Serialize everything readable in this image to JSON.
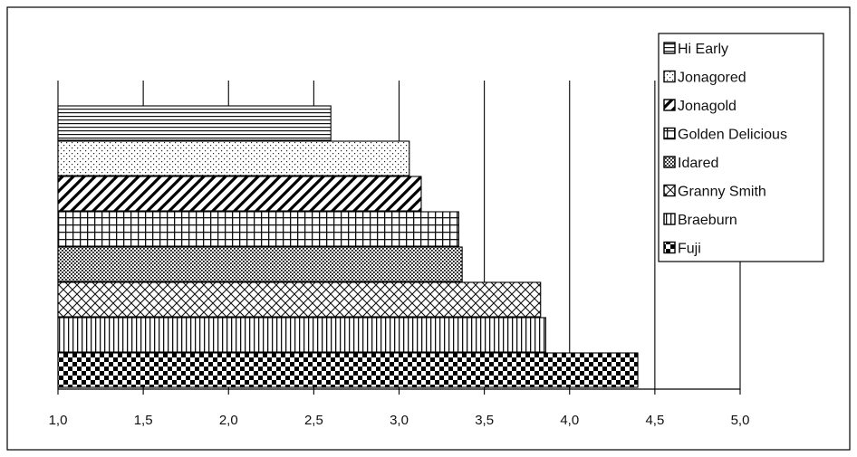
{
  "chart_data": {
    "type": "bar",
    "orientation": "horizontal",
    "title": "",
    "xlabel": "",
    "ylabel": "",
    "xlim": [
      1.0,
      5.0
    ],
    "x_ticks": [
      "1,0",
      "1,5",
      "2,0",
      "2,5",
      "3,0",
      "3,5",
      "4,0",
      "4,5",
      "5,0"
    ],
    "grid": "vertical major gridlines",
    "legend_position": "top-right",
    "series": [
      {
        "name": "Hi Early",
        "value": 2.6,
        "pattern": "horizontal-lines"
      },
      {
        "name": "Jonagored",
        "value": 3.06,
        "pattern": "dots"
      },
      {
        "name": "Jonagold",
        "value": 3.13,
        "pattern": "diagonal-stripes"
      },
      {
        "name": "Golden Delicious",
        "value": 3.35,
        "pattern": "grid"
      },
      {
        "name": "Idared",
        "value": 3.37,
        "pattern": "dense-dots"
      },
      {
        "name": "Granny Smith",
        "value": 3.83,
        "pattern": "diagonal-crosshatch"
      },
      {
        "name": "Braeburn",
        "value": 3.86,
        "pattern": "vertical-lines"
      },
      {
        "name": "Fuji",
        "value": 4.4,
        "pattern": "checkerboard"
      }
    ]
  }
}
